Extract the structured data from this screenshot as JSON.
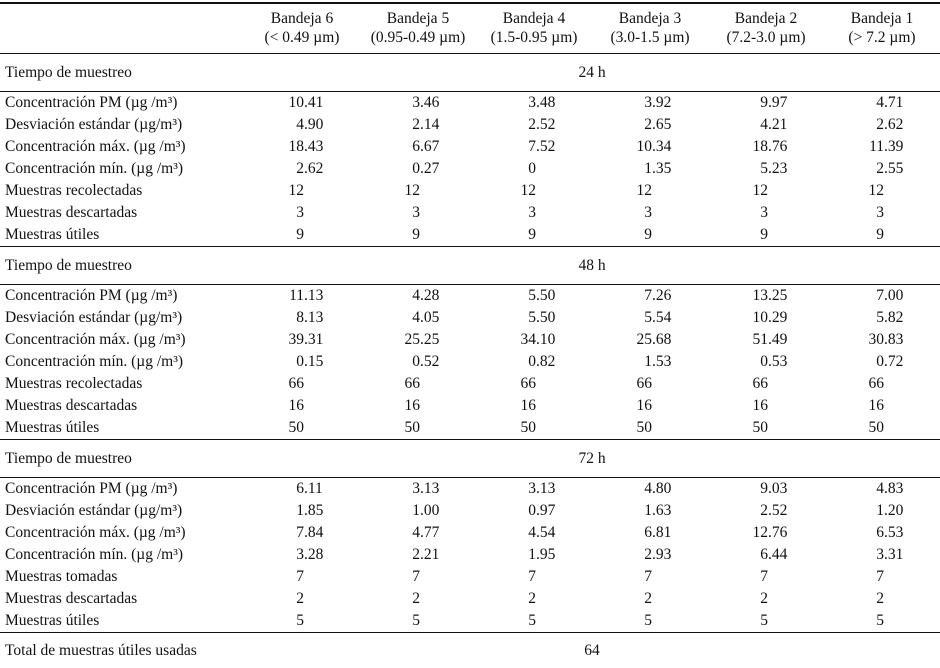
{
  "table": {
    "columns": [
      {
        "name": "Bandeja 6",
        "range": "(< 0.49 µm)"
      },
      {
        "name": "Bandeja 5",
        "range": "(0.95-0.49 µm)"
      },
      {
        "name": "Bandeja 4",
        "range": "(1.5-0.95 µm)"
      },
      {
        "name": "Bandeja 3",
        "range": "(3.0-1.5 µm)"
      },
      {
        "name": "Bandeja 2",
        "range": "(7.2-3.0 µm)"
      },
      {
        "name": "Bandeja 1",
        "range": "(> 7.2 µm)"
      }
    ],
    "sections": [
      {
        "time_label": "Tiempo de muestreo",
        "time_value": "24 h",
        "rows": [
          {
            "label": "Concentración PM (µg /m³)",
            "values": [
              "10.41",
              "3.46",
              "3.48",
              "3.92",
              "9.97",
              "4.71"
            ]
          },
          {
            "label": "Desviación estándar (µg/m³)",
            "values": [
              "4.90",
              "2.14",
              "2.52",
              "2.65",
              "4.21",
              "2.62"
            ]
          },
          {
            "label": "Concentración máx. (µg /m³)",
            "values": [
              "18.43",
              "6.67",
              "7.52",
              "10.34",
              "18.76",
              "11.39"
            ]
          },
          {
            "label": "Concentración mín. (µg /m³)",
            "values": [
              "2.62",
              "0.27",
              "0",
              "1.35",
              "5.23",
              "2.55"
            ]
          },
          {
            "label": "Muestras recolectadas",
            "values": [
              "12",
              "12",
              "12",
              "12",
              "12",
              "12"
            ]
          },
          {
            "label": "Muestras descartadas",
            "values": [
              "3",
              "3",
              "3",
              "3",
              "3",
              "3"
            ]
          },
          {
            "label": "Muestras útiles",
            "values": [
              "9",
              "9",
              "9",
              "9",
              "9",
              "9"
            ]
          }
        ]
      },
      {
        "time_label": "Tiempo de muestreo",
        "time_value": "48 h",
        "rows": [
          {
            "label": "Concentración PM (µg /m³)",
            "values": [
              "11.13",
              "4.28",
              "5.50",
              "7.26",
              "13.25",
              "7.00"
            ]
          },
          {
            "label": "Desviación estándar (µg/m³)",
            "values": [
              "8.13",
              "4.05",
              "5.50",
              "5.54",
              "10.29",
              "5.82"
            ]
          },
          {
            "label": "Concentración máx. (µg /m³)",
            "values": [
              "39.31",
              "25.25",
              "34.10",
              "25.68",
              "51.49",
              "30.83"
            ]
          },
          {
            "label": "Concentración mín. (µg /m³)",
            "values": [
              "0.15",
              "0.52",
              "0.82",
              "1.53",
              "0.53",
              "0.72"
            ]
          },
          {
            "label": "Muestras recolectadas",
            "values": [
              "66",
              "66",
              "66",
              "66",
              "66",
              "66"
            ]
          },
          {
            "label": "Muestras descartadas",
            "values": [
              "16",
              "16",
              "16",
              "16",
              "16",
              "16"
            ]
          },
          {
            "label": "Muestras útiles",
            "values": [
              "50",
              "50",
              "50",
              "50",
              "50",
              "50"
            ]
          }
        ]
      },
      {
        "time_label": "Tiempo de muestreo",
        "time_value": "72 h",
        "rows": [
          {
            "label": "Concentración PM (µg /m³)",
            "values": [
              "6.11",
              "3.13",
              "3.13",
              "4.80",
              "9.03",
              "4.83"
            ]
          },
          {
            "label": "Desviación estándar (µg/m³)",
            "values": [
              "1.85",
              "1.00",
              "0.97",
              "1.63",
              "2.52",
              "1.20"
            ]
          },
          {
            "label": "Concentración máx. (µg /m³)",
            "values": [
              "7.84",
              "4.77",
              "4.54",
              "6.81",
              "12.76",
              "6.53"
            ]
          },
          {
            "label": "Concentración mín. (µg /m³)",
            "values": [
              "3.28",
              "2.21",
              "1.95",
              "2.93",
              "6.44",
              "3.31"
            ]
          },
          {
            "label": "Muestras tomadas",
            "values": [
              "7",
              "7",
              "7",
              "7",
              "7",
              "7"
            ]
          },
          {
            "label": "Muestras descartadas",
            "values": [
              "2",
              "2",
              "2",
              "2",
              "2",
              "2"
            ]
          },
          {
            "label": "Muestras útiles",
            "values": [
              "5",
              "5",
              "5",
              "5",
              "5",
              "5"
            ]
          }
        ]
      }
    ],
    "footer": {
      "label": "Total de muestras útiles usadas",
      "value": "64"
    }
  }
}
